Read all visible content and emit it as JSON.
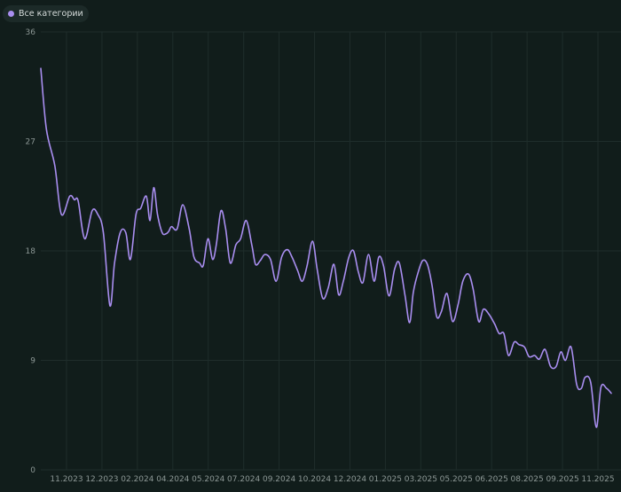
{
  "legend": {
    "label": "Все категории"
  },
  "chart_data": {
    "type": "line",
    "title": "",
    "xlabel": "",
    "ylabel": "",
    "ylim": [
      0,
      36
    ],
    "yticks": [
      0,
      9,
      18,
      27,
      36
    ],
    "grid": true,
    "legend_position": "top-left",
    "x_tick_labels": [
      "11.2023",
      "12.2023",
      "02.2024",
      "04.2024",
      "05.2024",
      "07.2024",
      "09.2024",
      "10.2024",
      "12.2024",
      "01.2025",
      "03.2025",
      "05.2025",
      "06.2025",
      "08.2025",
      "09.2025",
      "11.2025"
    ],
    "series": [
      {
        "name": "Все категории",
        "color": "#a98ef0",
        "x": [
          0.0,
          0.6,
          1.5,
          2.2,
          3.1,
          3.6,
          4.0,
          4.7,
          5.5,
          6.1,
          6.7,
          7.4,
          7.9,
          8.5,
          9.1,
          9.6,
          10.2,
          10.7,
          11.3,
          11.7,
          12.1,
          12.5,
          13.0,
          13.4,
          13.7,
          14.0,
          14.6,
          15.2,
          15.9,
          16.4,
          17.0,
          17.4,
          17.9,
          18.4,
          18.8,
          19.3,
          19.8,
          20.3,
          20.9,
          21.4,
          22.0,
          22.6,
          23.0,
          23.5,
          24.0,
          24.6,
          25.2,
          25.8,
          26.4,
          26.9,
          27.5,
          28.0,
          28.5,
          29.1,
          29.6,
          30.2,
          30.8,
          31.4,
          31.9,
          32.4,
          33.0,
          33.5,
          34.0,
          34.5,
          35.1,
          35.7,
          36.2,
          36.7,
          37.3,
          37.9,
          38.4,
          39.0,
          39.5,
          39.9,
          40.4,
          40.9,
          41.4,
          41.9,
          42.4,
          42.9,
          43.5,
          44.1,
          44.7,
          45.2,
          45.8,
          46.3,
          46.9,
          47.4,
          48.0,
          48.6,
          49.1,
          49.6,
          50.1,
          50.7,
          51.2,
          51.8,
          52.3,
          52.9,
          53.4,
          54.0,
          54.6,
          55.2,
          55.7,
          56.2,
          56.8,
          57.4,
          57.9,
          58.3,
          58.9,
          59.5,
          60.0,
          60.6,
          61.1
        ],
        "y": [
          33.0,
          28.0,
          25.0,
          21.0,
          22.5,
          22.2,
          22.1,
          19.0,
          21.3,
          21.0,
          19.5,
          13.5,
          17.0,
          19.5,
          19.5,
          17.3,
          21.0,
          21.5,
          22.5,
          20.5,
          23.2,
          21.0,
          19.5,
          19.4,
          19.6,
          20.0,
          19.8,
          21.8,
          19.8,
          17.5,
          17.0,
          16.8,
          19.0,
          17.3,
          18.5,
          21.3,
          19.8,
          17.0,
          18.5,
          19.0,
          20.5,
          18.5,
          16.9,
          17.2,
          17.7,
          17.3,
          15.5,
          17.5,
          18.1,
          17.5,
          16.4,
          15.5,
          16.7,
          18.8,
          16.5,
          14.1,
          15.0,
          16.9,
          14.4,
          15.5,
          17.5,
          18.0,
          16.3,
          15.4,
          17.7,
          15.5,
          17.5,
          16.8,
          14.3,
          16.5,
          17.0,
          14.4,
          12.1,
          14.6,
          16.2,
          17.2,
          16.9,
          15.2,
          12.6,
          13.0,
          14.5,
          12.2,
          13.6,
          15.5,
          16.1,
          14.9,
          12.2,
          13.2,
          12.8,
          12.0,
          11.2,
          11.2,
          9.4,
          10.5,
          10.3,
          10.1,
          9.3,
          9.4,
          9.1,
          9.9,
          8.5,
          8.5,
          9.7,
          9.0,
          10.1,
          7.0,
          6.7,
          7.6,
          7.2,
          3.5,
          6.8,
          6.7,
          6.3
        ]
      }
    ]
  }
}
